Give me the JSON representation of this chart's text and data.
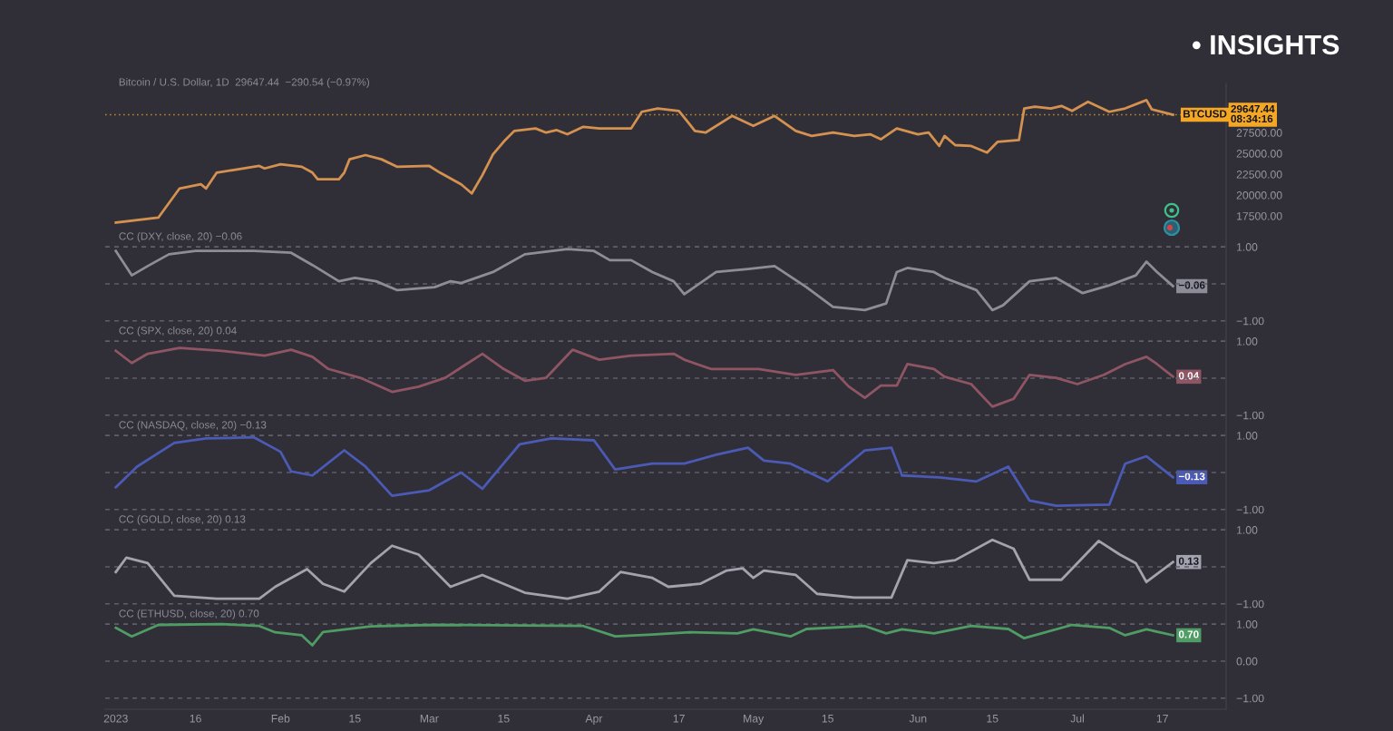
{
  "chart_data": [
    {
      "type": "line",
      "title": "Bitcoin / U.S. Dollar, 1D  29647.44  −290.54 (−0.97%)",
      "series": [
        {
          "color": "#d4914f",
          "x": [
            "2023-01-01",
            "2023-01-09",
            "2023-01-13",
            "2023-01-17",
            "2023-01-18",
            "2023-01-20",
            "2023-01-23",
            "2023-01-28",
            "2023-01-29",
            "2023-02-01",
            "2023-02-05",
            "2023-02-07",
            "2023-02-08",
            "2023-02-12",
            "2023-02-13",
            "2023-02-14",
            "2023-02-17",
            "2023-02-20",
            "2023-02-23",
            "2023-03-01",
            "2023-03-03",
            "2023-03-07",
            "2023-03-09",
            "2023-03-11",
            "2023-03-13",
            "2023-03-15",
            "2023-03-17",
            "2023-03-21",
            "2023-03-23",
            "2023-03-25",
            "2023-03-27",
            "2023-03-30",
            "2023-04-02",
            "2023-04-08",
            "2023-04-10",
            "2023-04-13",
            "2023-04-17",
            "2023-04-18",
            "2023-04-20",
            "2023-04-22",
            "2023-04-27",
            "2023-05-01",
            "2023-05-05",
            "2023-05-09",
            "2023-05-12",
            "2023-05-16",
            "2023-05-20",
            "2023-05-23",
            "2023-05-25",
            "2023-05-28",
            "2023-06-01",
            "2023-06-03",
            "2023-06-05",
            "2023-06-06",
            "2023-06-08",
            "2023-06-11",
            "2023-06-14",
            "2023-06-16",
            "2023-06-20",
            "2023-06-21",
            "2023-06-23",
            "2023-06-26",
            "2023-06-28",
            "2023-06-30",
            "2023-07-03",
            "2023-07-07",
            "2023-07-10",
            "2023-07-14",
            "2023-07-15",
            "2023-07-19"
          ],
          "values": [
            16700,
            17300,
            20800,
            21300,
            20800,
            22700,
            23000,
            23500,
            23200,
            23700,
            23400,
            22700,
            21900,
            21900,
            22700,
            24300,
            24800,
            24300,
            23400,
            23500,
            22700,
            21300,
            20200,
            22400,
            24900,
            26400,
            27700,
            28000,
            27500,
            27800,
            27300,
            28200,
            28000,
            28000,
            30000,
            30400,
            30100,
            29300,
            27700,
            27500,
            29500,
            28300,
            29500,
            27700,
            27100,
            27500,
            27100,
            27300,
            26700,
            28000,
            27300,
            27500,
            25900,
            27100,
            26000,
            25900,
            25100,
            26400,
            26600,
            30400,
            30600,
            30400,
            30700,
            30100,
            31200,
            30000,
            30400,
            31400,
            30300,
            29647.44
          ]
        }
      ],
      "xlim": [
        "2022-12-30",
        "2023-07-29"
      ],
      "ylim": [
        14900,
        33400
      ],
      "yticks": [
        {
          "value": 17500,
          "label": "17500.00"
        },
        {
          "value": 20000,
          "label": "20000.00"
        },
        {
          "value": 22500,
          "label": "22500.00"
        },
        {
          "value": 25000,
          "label": "25000.00"
        },
        {
          "value": 27500,
          "label": "27500.00"
        }
      ],
      "tick_labels": "y",
      "ref_lines": [
        {
          "axis": "y",
          "value": 29647.44,
          "label": "29647.44\n08:34:16",
          "color": "#f5a623",
          "line_style": "dotted"
        }
      ],
      "annotations": [
        {
          "text": "BTCUSD",
          "x": "2023-07-25",
          "y": 29647.44
        },
        "• INSIGHTS"
      ]
    },
    {
      "type": "line",
      "title": "CC (DXY, close, 20) −0.06",
      "series": [
        {
          "color": "#8e8d97",
          "x": [
            "2023-01-01",
            "2023-01-04",
            "2023-01-07",
            "2023-01-11",
            "2023-01-16",
            "2023-01-27",
            "2023-02-03",
            "2023-02-07",
            "2023-02-12",
            "2023-02-15",
            "2023-02-19",
            "2023-02-23",
            "2023-03-02",
            "2023-03-05",
            "2023-03-07",
            "2023-03-13",
            "2023-03-19",
            "2023-03-27",
            "2023-04-01",
            "2023-04-04",
            "2023-04-08",
            "2023-04-12",
            "2023-04-16",
            "2023-04-18",
            "2023-04-24",
            "2023-04-30",
            "2023-05-05",
            "2023-05-11",
            "2023-05-16",
            "2023-05-22",
            "2023-05-26",
            "2023-05-28",
            "2023-05-30",
            "2023-06-04",
            "2023-06-06",
            "2023-06-12",
            "2023-06-15",
            "2023-06-17",
            "2023-06-22",
            "2023-06-27",
            "2023-07-02",
            "2023-07-07",
            "2023-07-12",
            "2023-07-14",
            "2023-07-16",
            "2023-07-19"
          ],
          "values": [
            0.89,
            0.23,
            0.48,
            0.8,
            0.89,
            0.89,
            0.84,
            0.51,
            0.07,
            0.16,
            0.07,
            -0.17,
            -0.09,
            0.07,
            0.02,
            0.32,
            0.8,
            0.94,
            0.89,
            0.64,
            0.64,
            0.32,
            0.07,
            -0.28,
            0.32,
            0.4,
            0.48,
            -0.09,
            -0.62,
            -0.71,
            -0.53,
            0.32,
            0.43,
            0.32,
            0.16,
            -0.17,
            -0.71,
            -0.58,
            0.07,
            0.16,
            -0.25,
            -0.04,
            0.23,
            0.6,
            0.32,
            -0.06
          ],
          "value_labels": [
            null,
            null,
            null,
            null,
            null,
            null,
            null,
            null,
            null,
            null,
            null,
            null,
            null,
            null,
            null,
            null,
            null,
            null,
            null,
            null,
            null,
            null,
            null,
            null,
            null,
            null,
            null,
            null,
            null,
            null,
            null,
            null,
            null,
            null,
            null,
            null,
            null,
            null,
            null,
            null,
            null,
            null,
            null,
            null,
            null,
            "−0.06"
          ]
        }
      ],
      "xlim": [
        "2022-12-30",
        "2023-07-29"
      ],
      "ylim": [
        -1.3,
        1.25
      ],
      "yticks": [
        {
          "value": -1,
          "label": "−1.00"
        },
        {
          "value": 0,
          "label": null
        },
        {
          "value": 1,
          "label": "1.00"
        }
      ],
      "grid": "y",
      "tick_labels": "y"
    },
    {
      "type": "line",
      "title": "CC (SPX, close, 20) 0.04",
      "series": [
        {
          "color": "#8f5563",
          "x": [
            "2023-01-01",
            "2023-01-04",
            "2023-01-07",
            "2023-01-13",
            "2023-01-21",
            "2023-01-29",
            "2023-02-03",
            "2023-02-07",
            "2023-02-10",
            "2023-02-16",
            "2023-02-22",
            "2023-02-27",
            "2023-03-04",
            "2023-03-11",
            "2023-03-15",
            "2023-03-19",
            "2023-03-23",
            "2023-03-28",
            "2023-04-02",
            "2023-04-08",
            "2023-04-16",
            "2023-04-18",
            "2023-04-23",
            "2023-05-02",
            "2023-05-09",
            "2023-05-16",
            "2023-05-19",
            "2023-05-22",
            "2023-05-25",
            "2023-05-28",
            "2023-05-30",
            "2023-06-04",
            "2023-06-06",
            "2023-06-11",
            "2023-06-15",
            "2023-06-19",
            "2023-06-22",
            "2023-06-27",
            "2023-07-01",
            "2023-07-06",
            "2023-07-10",
            "2023-07-14",
            "2023-07-16",
            "2023-07-19"
          ],
          "values": [
            0.74,
            0.41,
            0.66,
            0.82,
            0.74,
            0.61,
            0.77,
            0.58,
            0.25,
            0.01,
            -0.37,
            -0.23,
            0.01,
            0.66,
            0.25,
            -0.07,
            0.01,
            0.77,
            0.5,
            0.61,
            0.66,
            0.5,
            0.25,
            0.25,
            0.09,
            0.22,
            -0.23,
            -0.53,
            -0.2,
            -0.2,
            0.38,
            0.25,
            0.04,
            -0.16,
            -0.77,
            -0.56,
            0.09,
            0.01,
            -0.16,
            0.09,
            0.38,
            0.58,
            0.38,
            0.04
          ],
          "value_labels": [
            null,
            null,
            null,
            null,
            null,
            null,
            null,
            null,
            null,
            null,
            null,
            null,
            null,
            null,
            null,
            null,
            null,
            null,
            null,
            null,
            null,
            null,
            null,
            null,
            null,
            null,
            null,
            null,
            null,
            null,
            null,
            null,
            null,
            null,
            null,
            null,
            null,
            null,
            null,
            null,
            null,
            null,
            null,
            "0.04"
          ]
        }
      ],
      "xlim": [
        "2022-12-30",
        "2023-07-29"
      ],
      "ylim": [
        -1.3,
        1.25
      ],
      "yticks": [
        {
          "value": -1,
          "label": "−1.00"
        },
        {
          "value": 0,
          "label": null
        },
        {
          "value": 1,
          "label": "1.00"
        }
      ],
      "grid": "y",
      "tick_labels": "y"
    },
    {
      "type": "line",
      "title": "CC (NASDAQ, close, 20) −0.13",
      "series": [
        {
          "color": "#4b5ab4",
          "x": [
            "2023-01-01",
            "2023-01-05",
            "2023-01-12",
            "2023-01-18",
            "2023-01-27",
            "2023-02-01",
            "2023-02-03",
            "2023-02-07",
            "2023-02-13",
            "2023-02-17",
            "2023-02-22",
            "2023-03-01",
            "2023-03-07",
            "2023-03-11",
            "2023-03-18",
            "2023-03-24",
            "2023-04-01",
            "2023-04-05",
            "2023-04-12",
            "2023-04-18",
            "2023-04-24",
            "2023-04-30",
            "2023-05-03",
            "2023-05-08",
            "2023-05-15",
            "2023-05-22",
            "2023-05-27",
            "2023-05-29",
            "2023-06-05",
            "2023-06-12",
            "2023-06-18",
            "2023-06-22",
            "2023-06-27",
            "2023-07-07",
            "2023-07-10",
            "2023-07-14",
            "2023-07-19"
          ],
          "values": [
            -0.4,
            0.16,
            0.8,
            0.92,
            0.95,
            0.56,
            0.03,
            -0.08,
            0.6,
            0.16,
            -0.63,
            -0.48,
            0.0,
            -0.44,
            0.76,
            0.92,
            0.87,
            0.08,
            0.24,
            0.24,
            0.48,
            0.67,
            0.32,
            0.24,
            -0.24,
            0.6,
            0.67,
            -0.08,
            -0.13,
            -0.24,
            0.16,
            -0.76,
            -0.9,
            -0.87,
            0.24,
            0.44,
            -0.13
          ],
          "value_labels": [
            null,
            null,
            null,
            null,
            null,
            null,
            null,
            null,
            null,
            null,
            null,
            null,
            null,
            null,
            null,
            null,
            null,
            null,
            null,
            null,
            null,
            null,
            null,
            null,
            null,
            null,
            null,
            null,
            null,
            null,
            null,
            null,
            null,
            null,
            null,
            null,
            "−0.13"
          ]
        }
      ],
      "xlim": [
        "2022-12-30",
        "2023-07-29"
      ],
      "ylim": [
        -1.3,
        1.25
      ],
      "yticks": [
        {
          "value": -1,
          "label": "−1.00"
        },
        {
          "value": 0,
          "label": null
        },
        {
          "value": 1,
          "label": "1.00"
        }
      ],
      "grid": "y",
      "tick_labels": "y"
    },
    {
      "type": "line",
      "title": "CC (GOLD, close, 20) 0.13",
      "series": [
        {
          "color": "#a3a2ad",
          "x": [
            "2023-01-01",
            "2023-01-03",
            "2023-01-07",
            "2023-01-12",
            "2023-01-20",
            "2023-01-28",
            "2023-01-31",
            "2023-02-06",
            "2023-02-09",
            "2023-02-13",
            "2023-02-18",
            "2023-02-22",
            "2023-02-27",
            "2023-03-05",
            "2023-03-11",
            "2023-03-19",
            "2023-03-27",
            "2023-04-02",
            "2023-04-06",
            "2023-04-12",
            "2023-04-15",
            "2023-04-21",
            "2023-04-26",
            "2023-04-29",
            "2023-05-01",
            "2023-05-03",
            "2023-05-09",
            "2023-05-13",
            "2023-05-20",
            "2023-05-27",
            "2023-05-30",
            "2023-06-04",
            "2023-06-08",
            "2023-06-15",
            "2023-06-19",
            "2023-06-22",
            "2023-06-28",
            "2023-07-05",
            "2023-07-09",
            "2023-07-12",
            "2023-07-14",
            "2023-07-19"
          ],
          "values": [
            -0.14,
            0.25,
            0.1,
            -0.78,
            -0.86,
            -0.86,
            -0.54,
            -0.06,
            -0.46,
            -0.67,
            0.1,
            0.57,
            0.33,
            -0.54,
            -0.22,
            -0.7,
            -0.86,
            -0.67,
            -0.14,
            -0.3,
            -0.54,
            -0.46,
            -0.1,
            -0.04,
            -0.3,
            -0.1,
            -0.22,
            -0.73,
            -0.83,
            -0.83,
            0.18,
            0.1,
            0.18,
            0.73,
            0.49,
            -0.35,
            -0.35,
            0.7,
            0.33,
            0.1,
            -0.41,
            0.13
          ],
          "value_labels": [
            null,
            null,
            null,
            null,
            null,
            null,
            null,
            null,
            null,
            null,
            null,
            null,
            null,
            null,
            null,
            null,
            null,
            null,
            null,
            null,
            null,
            null,
            null,
            null,
            null,
            null,
            null,
            null,
            null,
            null,
            null,
            null,
            null,
            null,
            null,
            null,
            null,
            null,
            null,
            null,
            null,
            "0.13"
          ]
        }
      ],
      "xlim": [
        "2022-12-30",
        "2023-07-29"
      ],
      "ylim": [
        -1.3,
        1.25
      ],
      "yticks": [
        {
          "value": -1,
          "label": "−1.00"
        },
        {
          "value": 0,
          "label": null
        },
        {
          "value": 1,
          "label": "1.00"
        }
      ],
      "grid": "y",
      "tick_labels": "y"
    },
    {
      "type": "line",
      "title": "CC (ETHUSD, close, 20) 0.70",
      "series": [
        {
          "color": "#4f9c64",
          "x": [
            "2023-01-01",
            "2023-01-04",
            "2023-01-09",
            "2023-01-21",
            "2023-01-28",
            "2023-01-31",
            "2023-02-05",
            "2023-02-07",
            "2023-02-09",
            "2023-02-18",
            "2023-03-02",
            "2023-03-30",
            "2023-04-05",
            "2023-04-12",
            "2023-04-19",
            "2023-04-28",
            "2023-05-01",
            "2023-05-08",
            "2023-05-11",
            "2023-05-22",
            "2023-05-26",
            "2023-05-29",
            "2023-06-04",
            "2023-06-11",
            "2023-06-18",
            "2023-06-21",
            "2023-06-30",
            "2023-07-07",
            "2023-07-10",
            "2023-07-14",
            "2023-07-19"
          ],
          "values": [
            0.9,
            0.67,
            0.98,
            1.0,
            0.95,
            0.78,
            0.7,
            0.43,
            0.79,
            0.94,
            0.98,
            0.95,
            0.67,
            0.72,
            0.78,
            0.75,
            0.86,
            0.67,
            0.87,
            0.95,
            0.75,
            0.86,
            0.75,
            0.95,
            0.87,
            0.62,
            0.98,
            0.9,
            0.7,
            0.86,
            0.7
          ],
          "value_labels": [
            null,
            null,
            null,
            null,
            null,
            null,
            null,
            null,
            null,
            null,
            null,
            null,
            null,
            null,
            null,
            null,
            null,
            null,
            null,
            null,
            null,
            null,
            null,
            null,
            null,
            null,
            null,
            null,
            null,
            null,
            "0.70"
          ]
        }
      ],
      "xlim": [
        "2022-12-30",
        "2023-07-29"
      ],
      "ylim": [
        -1.3,
        1.25
      ],
      "yticks": [
        {
          "value": -1,
          "label": "−1.00"
        },
        {
          "value": 0,
          "label": "0.00"
        },
        {
          "value": 1,
          "label": "1.00"
        }
      ],
      "grid": "y",
      "xticks": [
        {
          "value": "2023-01-01",
          "label": "2023"
        },
        {
          "value": "2023-01-16",
          "label": "16"
        },
        {
          "value": "2023-02-01",
          "label": "Feb"
        },
        {
          "value": "2023-02-15",
          "label": "15"
        },
        {
          "value": "2023-03-01",
          "label": "Mar"
        },
        {
          "value": "2023-03-15",
          "label": "15"
        },
        {
          "value": "2023-04-01",
          "label": "Apr"
        },
        {
          "value": "2023-04-17",
          "label": "17"
        },
        {
          "value": "2023-05-01",
          "label": "May"
        },
        {
          "value": "2023-05-15",
          "label": "15"
        },
        {
          "value": "2023-06-01",
          "label": "Jun"
        },
        {
          "value": "2023-06-15",
          "label": "15"
        },
        {
          "value": "2023-07-01",
          "label": "Jul"
        },
        {
          "value": "2023-07-17",
          "label": "17"
        }
      ]
    }
  ]
}
